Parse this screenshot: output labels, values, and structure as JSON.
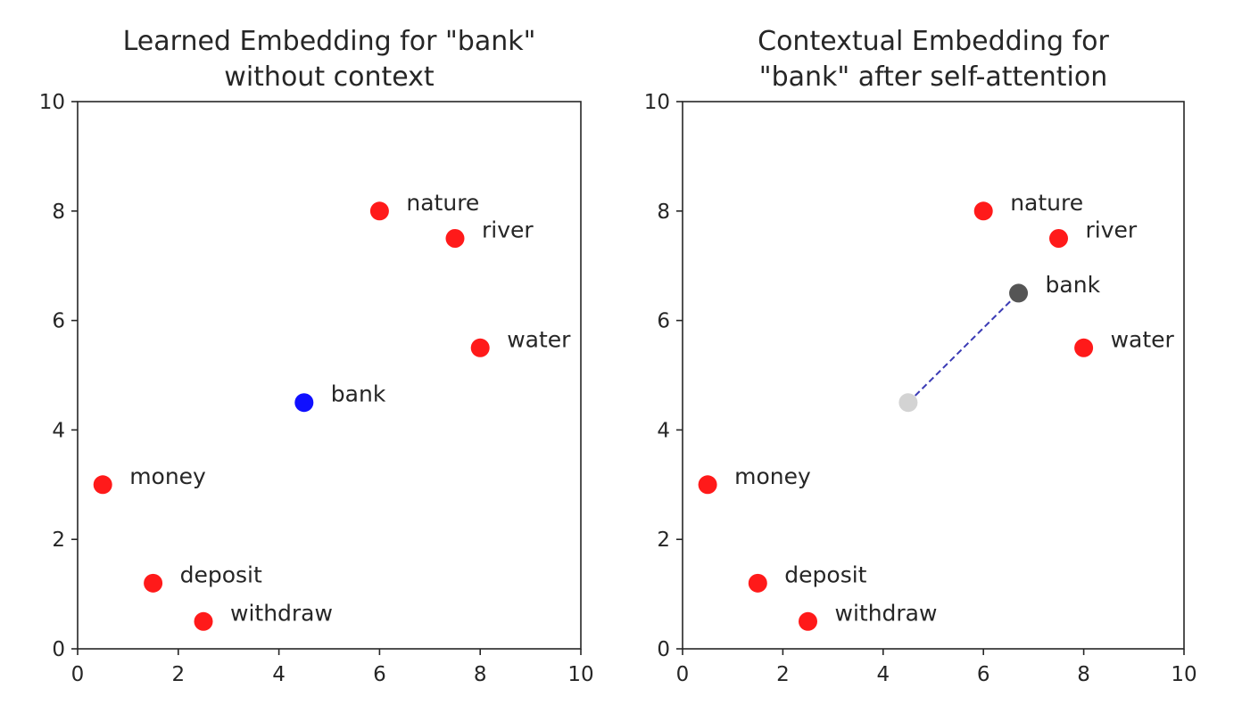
{
  "chart_data": [
    {
      "type": "scatter",
      "title_lines": [
        "Learned Embedding for \"bank\"",
        "without context"
      ],
      "xlim": [
        0,
        10
      ],
      "ylim": [
        0,
        10
      ],
      "xticks": [
        0,
        2,
        4,
        6,
        8,
        10
      ],
      "yticks": [
        0,
        2,
        4,
        6,
        8,
        10
      ],
      "xtick_labels": [
        "0",
        "2",
        "4",
        "6",
        "8",
        "10"
      ],
      "ytick_labels": [
        "0",
        "2",
        "4",
        "6",
        "8",
        "10"
      ],
      "grid": false,
      "points": [
        {
          "label": "nature",
          "x": 6,
          "y": 8,
          "color": "#ff1a1a"
        },
        {
          "label": "river",
          "x": 7.5,
          "y": 7.5,
          "color": "#ff1a1a"
        },
        {
          "label": "water",
          "x": 8,
          "y": 5.5,
          "color": "#ff1a1a"
        },
        {
          "label": "money",
          "x": 0.5,
          "y": 3,
          "color": "#ff1a1a"
        },
        {
          "label": "deposit",
          "x": 1.5,
          "y": 1.2,
          "color": "#ff1a1a"
        },
        {
          "label": "withdraw",
          "x": 2.5,
          "y": 0.5,
          "color": "#ff1a1a"
        },
        {
          "label": "bank",
          "x": 4.5,
          "y": 4.5,
          "color": "#1010ff"
        }
      ],
      "arrows": []
    },
    {
      "type": "scatter",
      "title_lines": [
        "Contextual Embedding for",
        "\"bank\" after self-attention"
      ],
      "xlim": [
        0,
        10
      ],
      "ylim": [
        0,
        10
      ],
      "xticks": [
        0,
        2,
        4,
        6,
        8,
        10
      ],
      "yticks": [
        0,
        2,
        4,
        6,
        8,
        10
      ],
      "xtick_labels": [
        "0",
        "2",
        "4",
        "6",
        "8",
        "10"
      ],
      "ytick_labels": [
        "0",
        "2",
        "4",
        "6",
        "8",
        "10"
      ],
      "grid": false,
      "points": [
        {
          "label": "nature",
          "x": 6,
          "y": 8,
          "color": "#ff1a1a"
        },
        {
          "label": "river",
          "x": 7.5,
          "y": 7.5,
          "color": "#ff1a1a"
        },
        {
          "label": "water",
          "x": 8,
          "y": 5.5,
          "color": "#ff1a1a"
        },
        {
          "label": "money",
          "x": 0.5,
          "y": 3,
          "color": "#ff1a1a"
        },
        {
          "label": "deposit",
          "x": 1.5,
          "y": 1.2,
          "color": "#ff1a1a"
        },
        {
          "label": "withdraw",
          "x": 2.5,
          "y": 0.5,
          "color": "#ff1a1a"
        },
        {
          "label": "",
          "x": 4.5,
          "y": 4.5,
          "color": "#d3d3d3"
        },
        {
          "label": "bank",
          "x": 6.7,
          "y": 6.5,
          "color": "#555555"
        }
      ],
      "arrows": [
        {
          "from": [
            4.5,
            4.5
          ],
          "to": [
            6.7,
            6.5
          ],
          "color": "#3b3bb5",
          "style": "dashed"
        }
      ]
    }
  ]
}
